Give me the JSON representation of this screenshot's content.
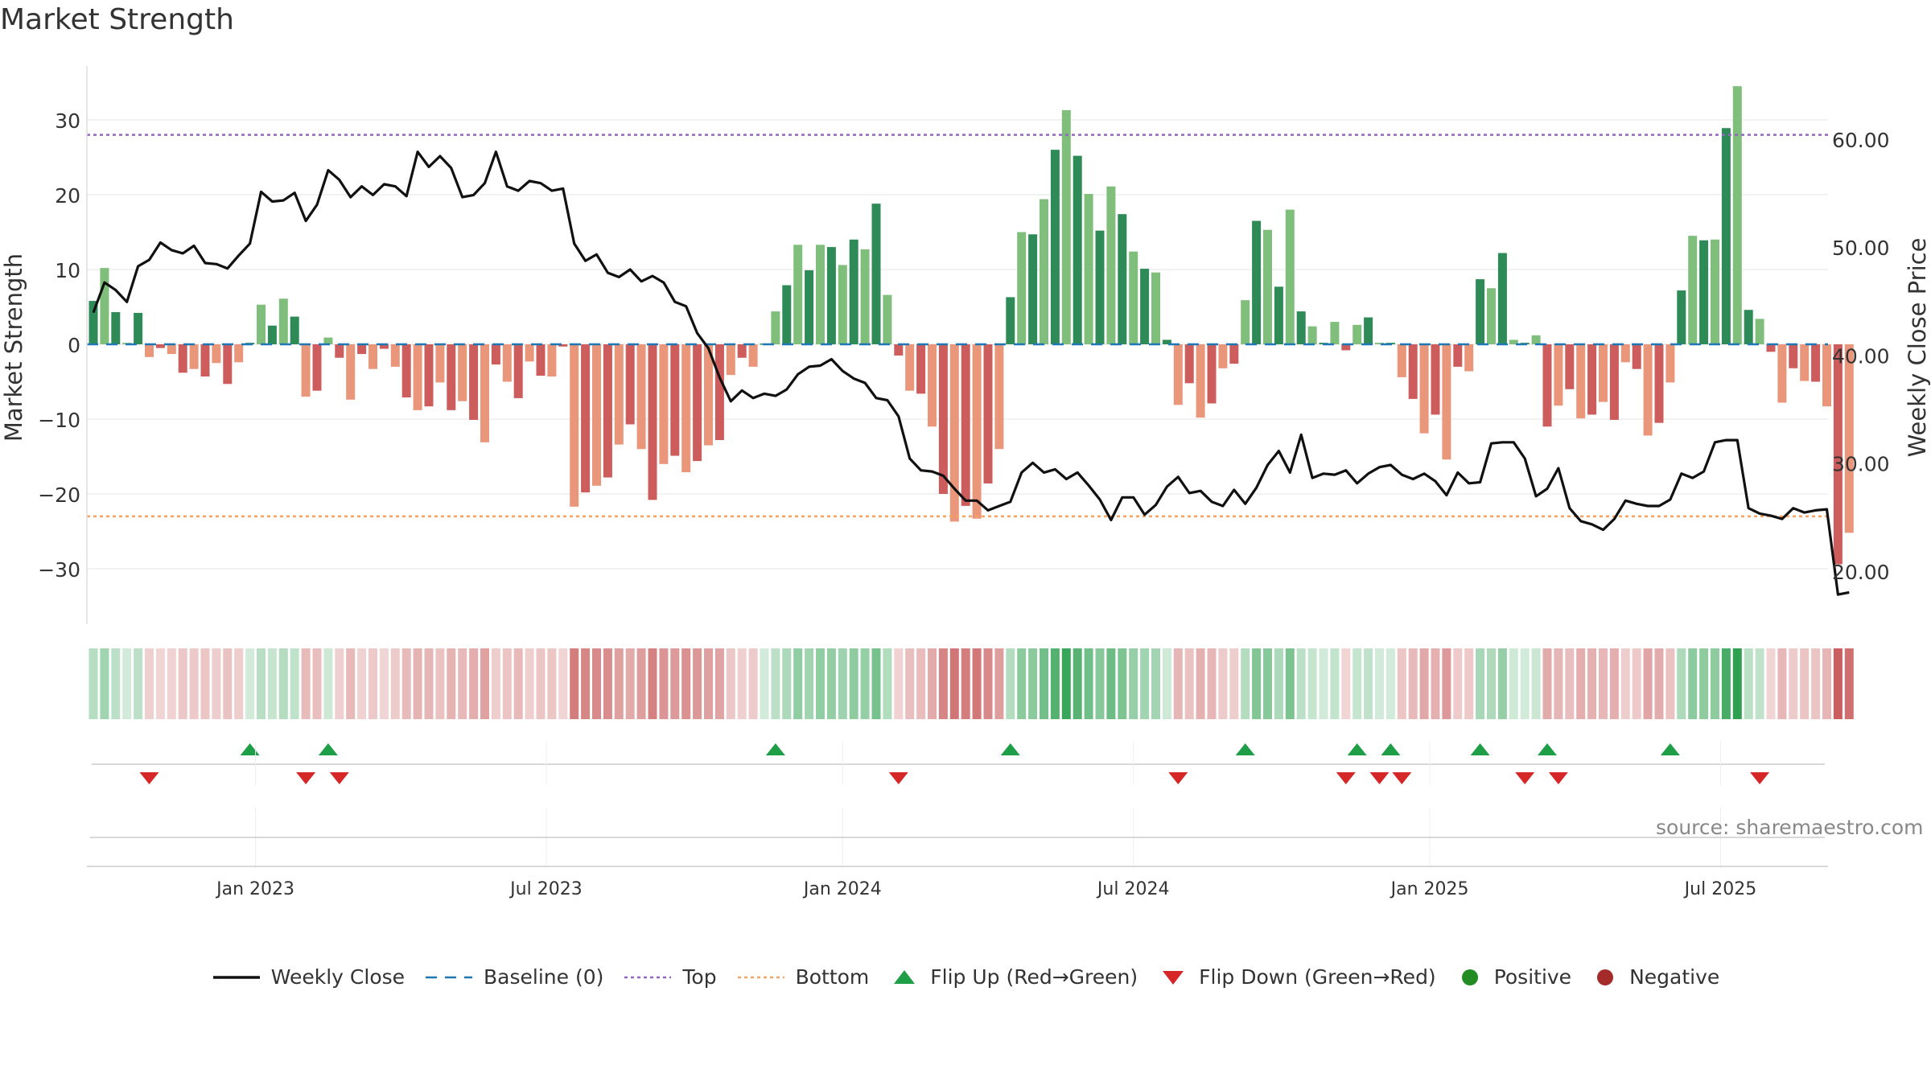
{
  "title": "Market Strength",
  "source": "source: sharemaestro.com",
  "colors": {
    "price_line": "#111111",
    "baseline": "#1f77b4",
    "top": "#9467bd",
    "bottom": "#f4a460",
    "pos_strong": "#2e8b57",
    "pos_weak": "#7fbf7b",
    "neg_strong": "#cd5c5c",
    "neg_weak": "#e9967a",
    "flip_up": "#1e9e46",
    "flip_down": "#d62728",
    "positive": "#228b22",
    "negative": "#a52a2a"
  },
  "chart_data": {
    "type": "bar",
    "y_left_label": "Market Strength",
    "y_right_label": "Weekly Close Price",
    "y_left_range": [
      -37,
      37
    ],
    "y_right_range": [
      15.3,
      67.0
    ],
    "y_left_ticks": [
      "30",
      "20",
      "10",
      "0",
      "−10",
      "−20",
      "−30"
    ],
    "y_left_tick_values": [
      30,
      20,
      10,
      0,
      -10,
      -20,
      -30
    ],
    "y_right_ticks": [
      "60.00",
      "50.00",
      "40.00",
      "30.00",
      "20.00"
    ],
    "y_right_tick_values": [
      60,
      50,
      40,
      30,
      20
    ],
    "x_ticks": [
      "Jan 2023",
      "Jul 2023",
      "Jan 2024",
      "Jul 2024",
      "Jan 2025",
      "Jul 2025"
    ],
    "x_tick_weeks": [
      14.5,
      40.5,
      67.0,
      93.0,
      119.5,
      145.5
    ],
    "top_level": 28,
    "bottom_level": -23,
    "strength": [
      5.8,
      10.2,
      4.3,
      0.2,
      4.2,
      -1.7,
      -0.5,
      -1.3,
      -3.8,
      -3.3,
      -4.3,
      -2.5,
      -5.3,
      -2.4,
      0.2,
      5.3,
      2.5,
      6.1,
      3.7,
      -7.0,
      -6.2,
      0.9,
      -1.8,
      -7.4,
      -1.3,
      -3.3,
      -0.6,
      -3.0,
      -7.1,
      -8.8,
      -8.3,
      -5.1,
      -8.8,
      -7.6,
      -10.1,
      -13.1,
      -2.7,
      -5.0,
      -7.2,
      -2.3,
      -4.2,
      -4.3,
      -0.3,
      -21.7,
      -19.8,
      -18.9,
      -17.8,
      -13.4,
      -10.7,
      -14.0,
      -20.8,
      -16.0,
      -14.9,
      -17.1,
      -15.6,
      -13.5,
      -12.8,
      -4.1,
      -1.8,
      -3.0,
      0.1,
      4.4,
      7.9,
      13.3,
      9.9,
      13.3,
      13.0,
      10.6,
      14.0,
      12.7,
      18.8,
      6.6,
      -1.5,
      -6.2,
      -6.6,
      -11.0,
      -20.0,
      -23.7,
      -21.6,
      -23.3,
      -18.6,
      -14.0,
      6.3,
      15.0,
      14.7,
      19.4,
      26.0,
      31.3,
      25.2,
      20.1,
      15.2,
      21.1,
      17.4,
      12.4,
      10.1,
      9.6,
      0.6,
      -8.1,
      -5.2,
      -9.8,
      -7.9,
      -3.2,
      -2.6,
      5.9,
      16.5,
      15.3,
      7.7,
      18.0,
      4.4,
      2.4,
      0.2,
      3.0,
      -0.8,
      2.6,
      3.6,
      0.2,
      0.2,
      -4.4,
      -7.3,
      -11.9,
      -9.4,
      -15.4,
      -3.0,
      -3.6,
      8.7,
      7.5,
      12.2,
      0.6,
      0.2,
      1.2,
      -11.0,
      -8.2,
      -6.0,
      -9.9,
      -9.4,
      -7.7,
      -10.1,
      -2.4,
      -3.3,
      -12.2,
      -10.5,
      -5.1,
      7.2,
      14.5,
      13.9,
      14.0,
      28.9,
      34.5,
      4.6,
      3.4,
      -1.0,
      -7.8,
      -3.2,
      -4.9,
      -5.0,
      -8.3,
      -29.4,
      -25.2
    ],
    "weekly_close": [
      44.0,
      46.8,
      46.1,
      45.0,
      48.3,
      48.9,
      50.5,
      49.8,
      49.5,
      50.2,
      48.6,
      48.5,
      48.1,
      49.3,
      50.4,
      55.2,
      54.3,
      54.4,
      55.1,
      52.5,
      54.0,
      57.2,
      56.3,
      54.7,
      55.7,
      54.9,
      55.9,
      55.7,
      54.8,
      58.9,
      57.5,
      58.5,
      57.4,
      54.7,
      54.9,
      56.0,
      58.9,
      55.7,
      55.3,
      56.2,
      56.0,
      55.3,
      55.5,
      50.4,
      48.8,
      49.4,
      47.7,
      47.3,
      48.0,
      46.9,
      47.4,
      46.8,
      45.0,
      44.6,
      42.1,
      40.7,
      38.0,
      35.8,
      36.8,
      36.1,
      36.5,
      36.3,
      36.9,
      38.3,
      39.0,
      39.1,
      39.7,
      38.6,
      37.9,
      37.5,
      36.1,
      35.9,
      34.4,
      30.5,
      29.4,
      29.3,
      28.9,
      27.7,
      26.6,
      26.6,
      25.7,
      26.1,
      26.5,
      29.2,
      30.1,
      29.2,
      29.5,
      28.6,
      29.2,
      28.0,
      26.7,
      24.8,
      26.9,
      26.9,
      25.3,
      26.2,
      27.9,
      28.8,
      27.3,
      27.5,
      26.5,
      26.1,
      27.6,
      26.3,
      27.8,
      29.9,
      31.2,
      29.2,
      32.7,
      28.7,
      29.1,
      29.0,
      29.4,
      28.2,
      29.1,
      29.7,
      29.9,
      29.0,
      28.6,
      29.1,
      28.4,
      27.1,
      29.2,
      28.2,
      28.3,
      31.9,
      32.0,
      32.0,
      30.5,
      27.0,
      27.7,
      29.6,
      25.9,
      24.7,
      24.4,
      23.9,
      24.9,
      26.6,
      26.3,
      26.1,
      26.1,
      26.7,
      29.1,
      28.7,
      29.3,
      32.0,
      32.2,
      32.2,
      25.9,
      25.4,
      25.2,
      24.9,
      25.9,
      25.5,
      25.7,
      25.8,
      17.9,
      18.1
    ],
    "first_week_date": "2022-09-26",
    "flip_up_weeks": [
      14,
      21,
      61,
      82,
      103,
      113,
      116,
      124,
      130,
      141
    ],
    "flip_down_weeks": [
      5,
      19,
      22,
      72,
      97,
      112,
      115,
      117,
      128,
      131,
      149
    ],
    "legend": [
      "Weekly Close",
      "Baseline (0)",
      "Top",
      "Bottom",
      "Flip Up (Red→Green)",
      "Flip Down (Green→Red)",
      "Positive",
      "Negative"
    ]
  }
}
